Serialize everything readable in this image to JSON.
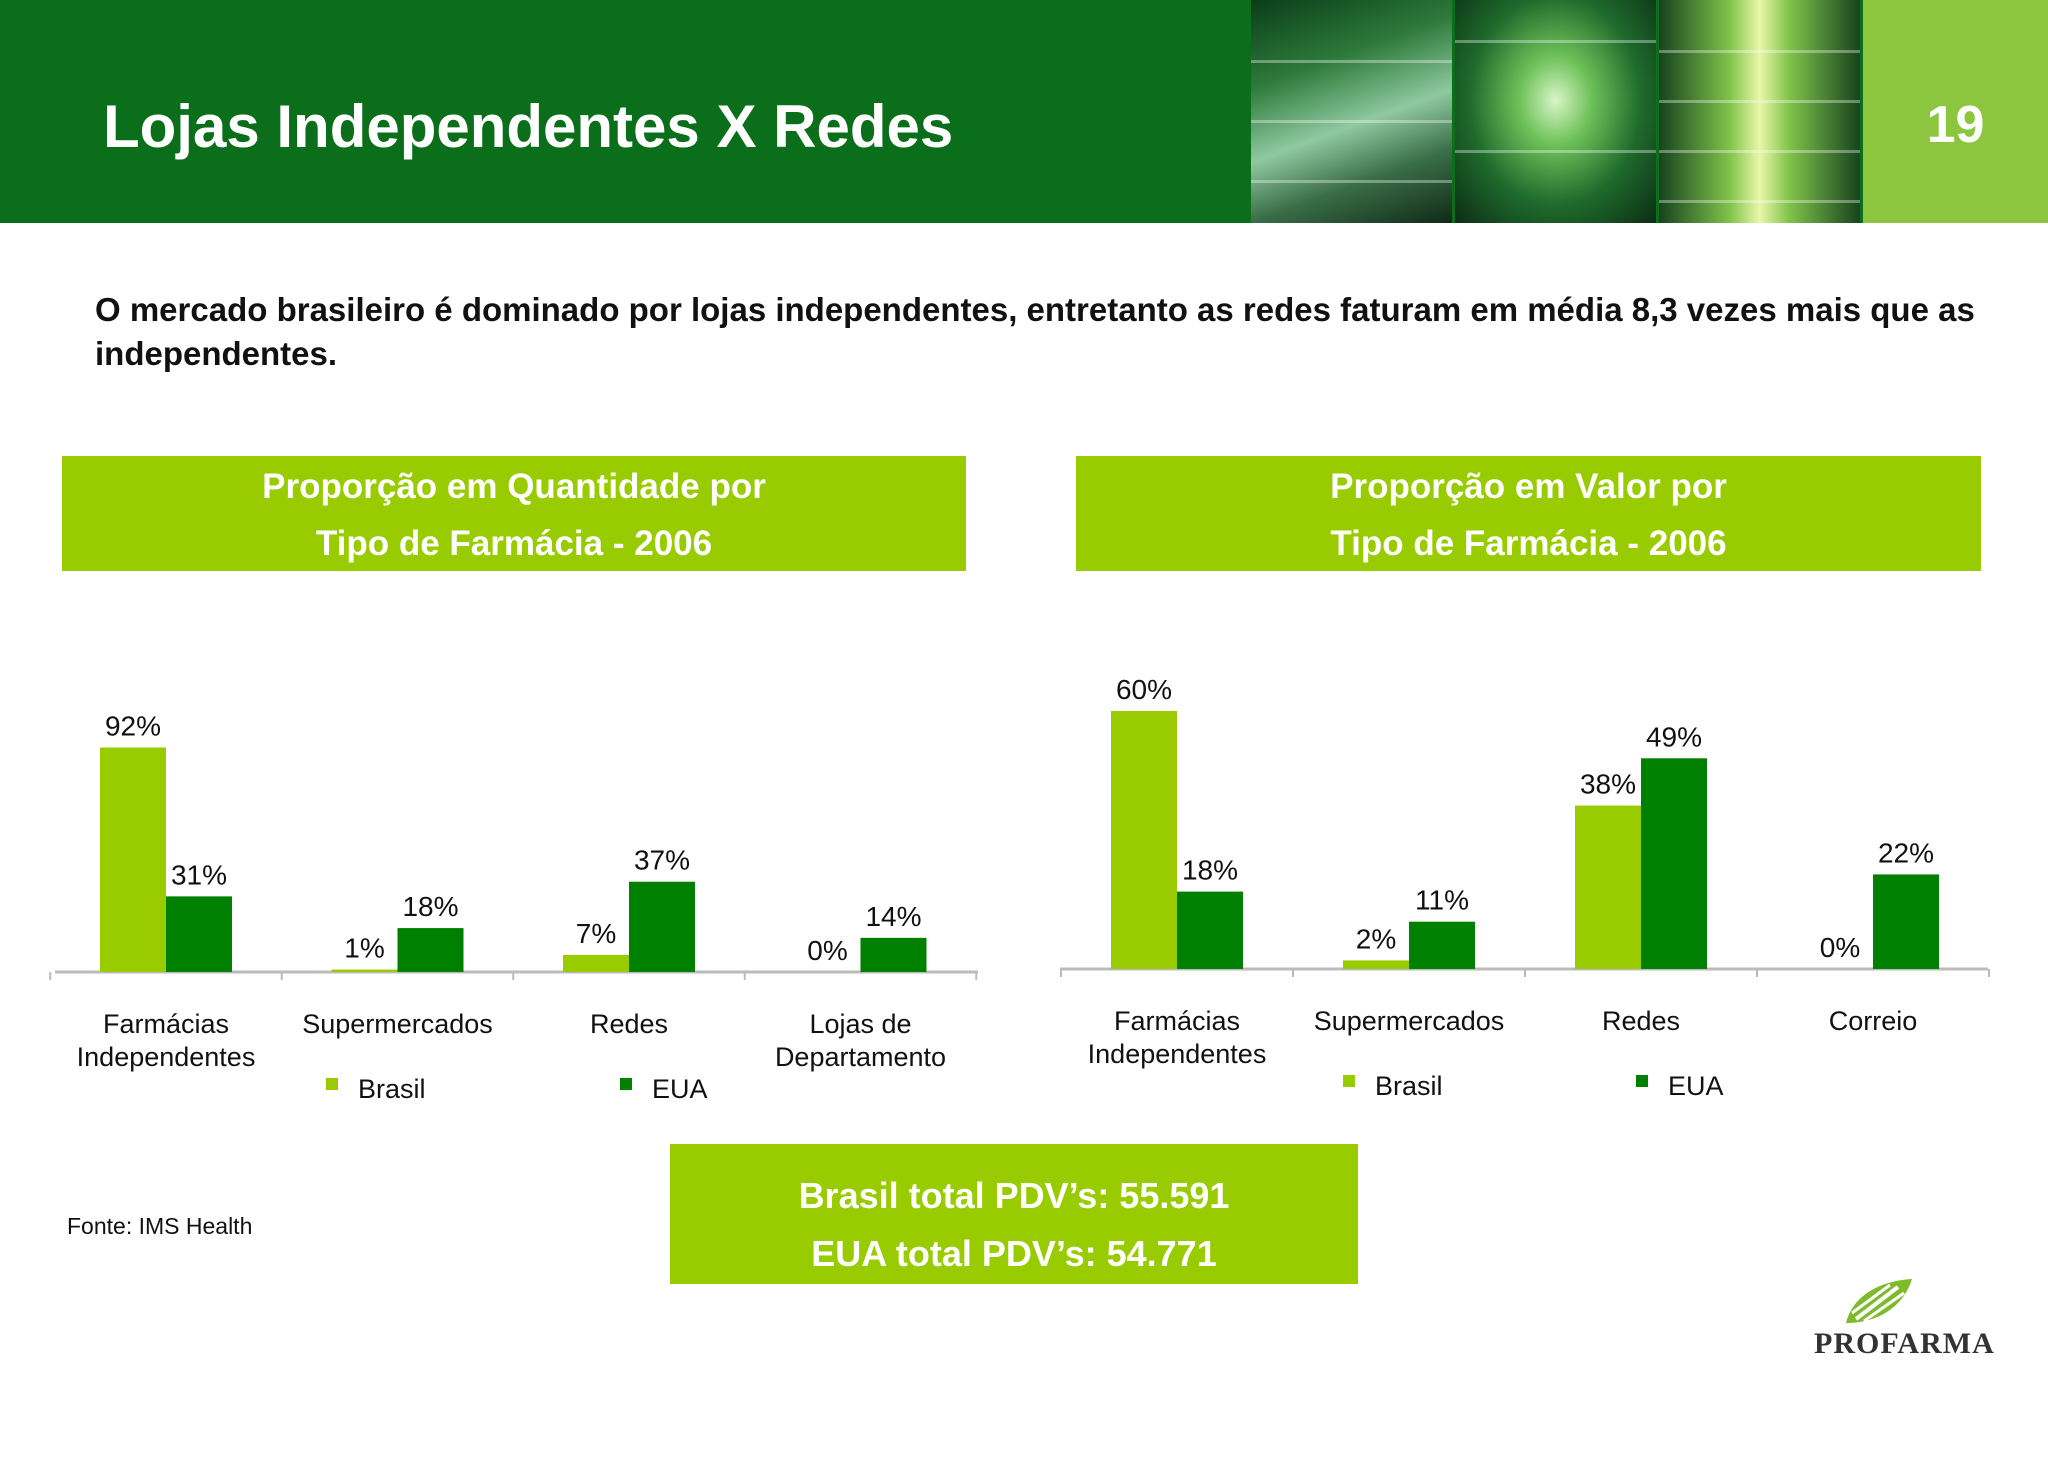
{
  "header": {
    "title": "Lojas Independentes X Redes",
    "page_number": "19",
    "accent_color": "#0b6e1a",
    "page_box_color": "#8cc63f"
  },
  "intro_text": "O mercado brasileiro é dominado por lojas independentes, entretanto as redes faturam em média 8,3 vezes mais que as independentes.",
  "charts": {
    "left": {
      "title_line1": "Proporção em Quantidade por",
      "title_line2": "Tipo de Farmácia - 2006"
    },
    "right": {
      "title_line1": "Proporção em Valor por",
      "title_line2": "Tipo de Farmácia - 2006"
    }
  },
  "chart_data": [
    {
      "type": "bar",
      "title": "Proporção em Quantidade por Tipo de Farmácia - 2006",
      "categories": [
        [
          "Farmácias",
          "Independentes"
        ],
        [
          "Supermercados"
        ],
        [
          "Redes"
        ],
        [
          "Lojas de",
          "Departamento"
        ]
      ],
      "series": [
        {
          "name": "Brasil",
          "color": "#99cc00",
          "values": [
            92,
            1,
            7,
            0
          ],
          "labels": [
            "92%",
            "1%",
            "7%",
            "0%"
          ]
        },
        {
          "name": "EUA",
          "color": "#008000",
          "values": [
            31,
            18,
            37,
            14
          ],
          "labels": [
            "31%",
            "18%",
            "37%",
            "14%"
          ]
        }
      ],
      "ylim": [
        0,
        100
      ],
      "grid": false,
      "legend": "bottom"
    },
    {
      "type": "bar",
      "title": "Proporção em Valor por Tipo de Farmácia - 2006",
      "categories": [
        [
          "Farmácias",
          "Independentes"
        ],
        [
          "Supermercados"
        ],
        [
          "Redes"
        ],
        [
          "Correio"
        ]
      ],
      "series": [
        {
          "name": "Brasil",
          "color": "#99cc00",
          "values": [
            60,
            2,
            38,
            0
          ],
          "labels": [
            "60%",
            "2%",
            "38%",
            "0%"
          ]
        },
        {
          "name": "EUA",
          "color": "#008000",
          "values": [
            18,
            11,
            49,
            22
          ],
          "labels": [
            "18%",
            "11%",
            "49%",
            "22%"
          ]
        }
      ],
      "ylim": [
        0,
        65
      ],
      "grid": false,
      "legend": "bottom"
    }
  ],
  "totals": {
    "line1": "Brasil total PDV’s: 55.591",
    "line2": "EUA total PDV’s: 54.771"
  },
  "source": "Fonte: IMS Health",
  "logo": {
    "text": "PROFARMA",
    "icon": "profarma-leaf-icon"
  }
}
